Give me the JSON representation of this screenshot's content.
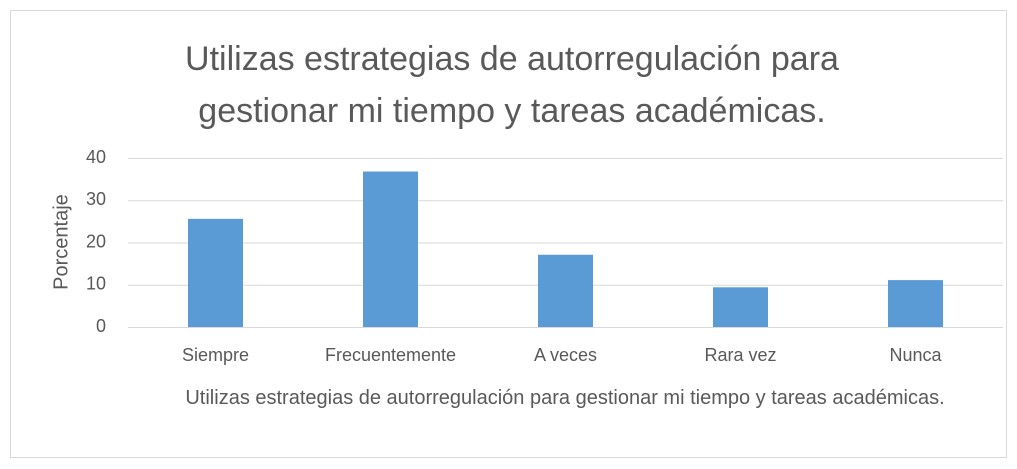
{
  "chart_data": {
    "type": "bar",
    "title": "Utilizas estrategias de autorregulación para gestionar mi tiempo y tareas académicas.",
    "x_label": "Utilizas estrategias de autorregulación para gestionar mi tiempo y tareas académicas.",
    "y_label": "Porcentaje",
    "categories": [
      "Siempre",
      "Frecuentemente",
      "A veces",
      "Rara vez",
      "Nunca"
    ],
    "values": [
      25.6,
      36.8,
      17.1,
      9.4,
      11.1
    ],
    "color": "#5b9bd5",
    "ylim": [
      0,
      40
    ],
    "yticks": [
      0,
      10,
      20,
      30,
      40
    ],
    "grid": true
  }
}
